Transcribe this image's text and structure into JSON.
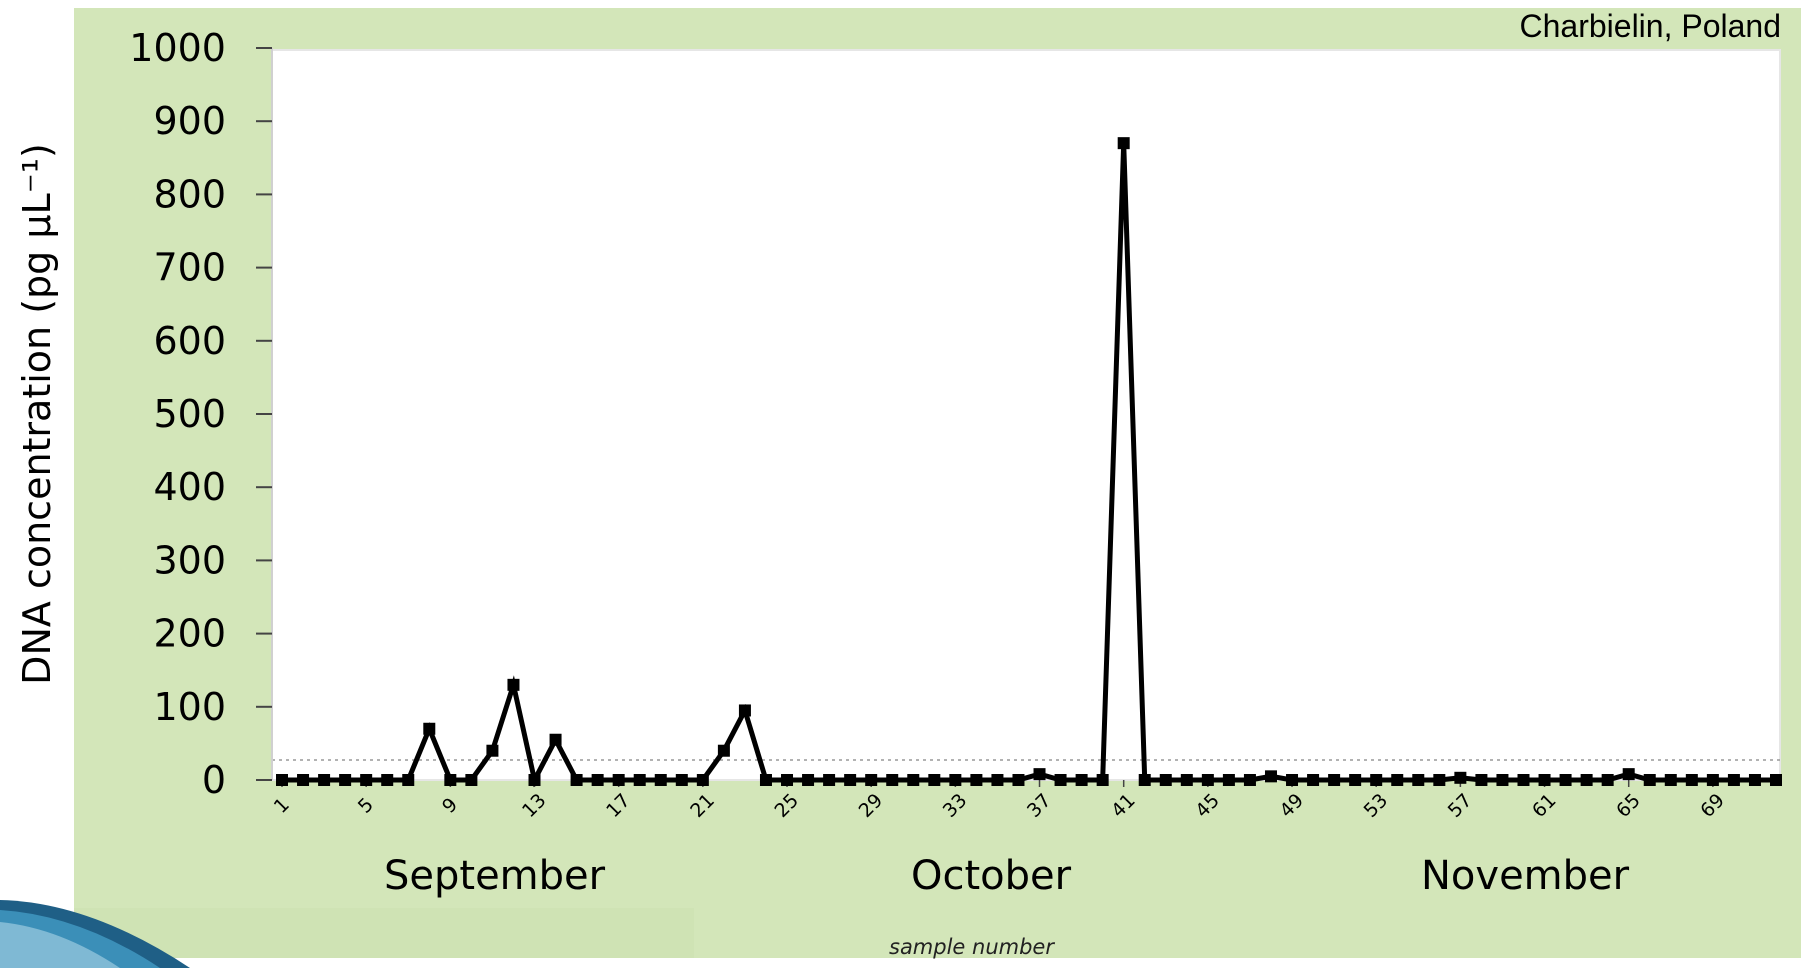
{
  "header": {
    "corner_label": "Charbielin, Poland"
  },
  "months": [
    "September",
    "October",
    "November"
  ],
  "chart_data": {
    "type": "line",
    "title": "",
    "xlabel": "sample number",
    "ylabel": "DNA concentration (pg µL⁻¹)",
    "ylim": [
      0,
      1000
    ],
    "yticks": [
      0,
      100,
      200,
      300,
      400,
      500,
      600,
      700,
      800,
      900,
      1000
    ],
    "xlim": [
      1,
      72
    ],
    "xticks": [
      1,
      5,
      9,
      13,
      17,
      21,
      25,
      29,
      33,
      37,
      41,
      45,
      49,
      53,
      57,
      61,
      65,
      69
    ],
    "grid": false,
    "legend": "none",
    "series": [
      {
        "color": "#000000",
        "x": [
          1,
          2,
          3,
          4,
          5,
          6,
          7,
          8,
          9,
          10,
          11,
          12,
          13,
          14,
          15,
          16,
          17,
          18,
          19,
          20,
          21,
          22,
          23,
          24,
          25,
          26,
          27,
          28,
          29,
          30,
          31,
          32,
          33,
          34,
          35,
          36,
          37,
          38,
          39,
          40,
          41,
          42,
          43,
          44,
          45,
          46,
          47,
          48,
          49,
          50,
          51,
          52,
          53,
          54,
          55,
          56,
          57,
          58,
          59,
          60,
          61,
          62,
          63,
          64,
          65,
          66,
          67,
          68,
          69,
          70,
          71,
          72
        ],
        "y": [
          0,
          0,
          0,
          0,
          0,
          0,
          0,
          70,
          0,
          0,
          40,
          130,
          0,
          55,
          0,
          0,
          0,
          0,
          0,
          0,
          0,
          40,
          95,
          0,
          0,
          0,
          0,
          0,
          0,
          0,
          0,
          0,
          0,
          0,
          0,
          0,
          8,
          0,
          0,
          0,
          870,
          0,
          0,
          0,
          0,
          0,
          0,
          5,
          0,
          0,
          0,
          0,
          0,
          0,
          0,
          0,
          3,
          0,
          0,
          0,
          0,
          0,
          0,
          0,
          8,
          0,
          0,
          0,
          0,
          0,
          0,
          0
        ]
      }
    ]
  }
}
